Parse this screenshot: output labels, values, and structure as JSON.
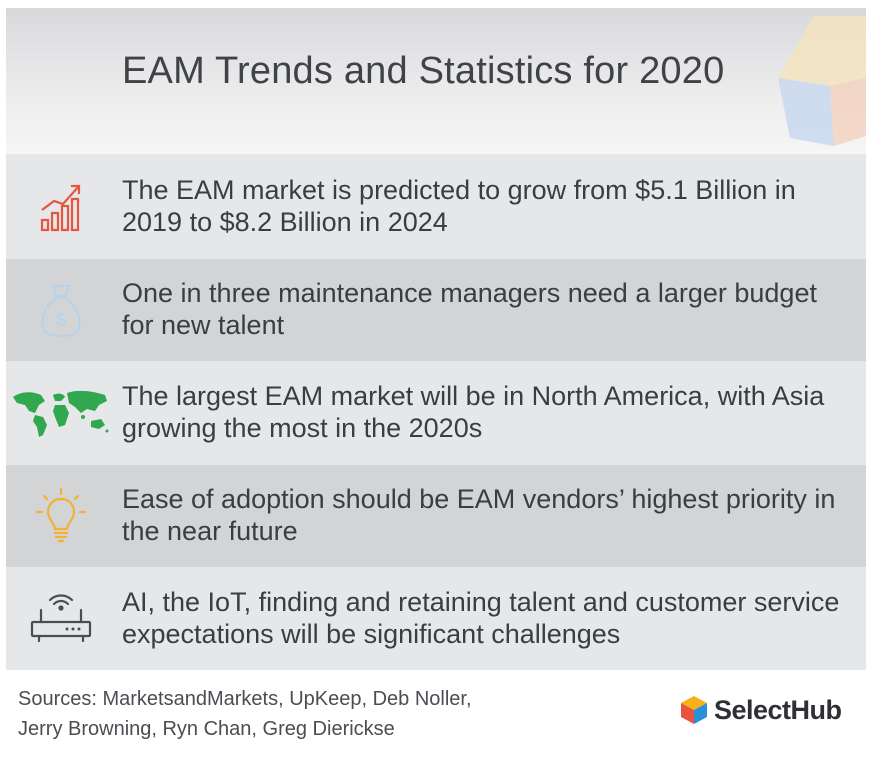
{
  "header": {
    "title": "EAM Trends and Statistics for 2020"
  },
  "stats": [
    {
      "icon": "growth-chart-icon",
      "text": "The EAM market is predicted to grow from $5.1 Billion in 2019 to $8.2 Billion in 2024"
    },
    {
      "icon": "money-bag-icon",
      "text": "One in three maintenance managers need a larger budget for new talent"
    },
    {
      "icon": "world-map-icon",
      "text": "The largest EAM market will be in North America, with Asia growing the most in the 2020s"
    },
    {
      "icon": "lightbulb-icon",
      "text": "Ease of adoption should be EAM vendors’ highest priority in the near future"
    },
    {
      "icon": "router-icon",
      "text": "AI, the IoT, finding and retaining talent and customer service expectations will be significant challenges"
    }
  ],
  "footer": {
    "sources_line1": "Sources: MarketsandMarkets, UpKeep,  Deb Noller,",
    "sources_line2": "Jerry Browning, Ryn Chan, Greg Dierickse",
    "brand": "SelectHub"
  },
  "colors": {
    "growth_icon": "#e8553f",
    "bag_icon": "#b9d2ea",
    "map_icon": "#2fa84f",
    "bulb_icon": "#f2b233",
    "router_icon": "#4a4d52",
    "row_light": "#e6e7e9",
    "row_dark": "#d3d4d6"
  }
}
